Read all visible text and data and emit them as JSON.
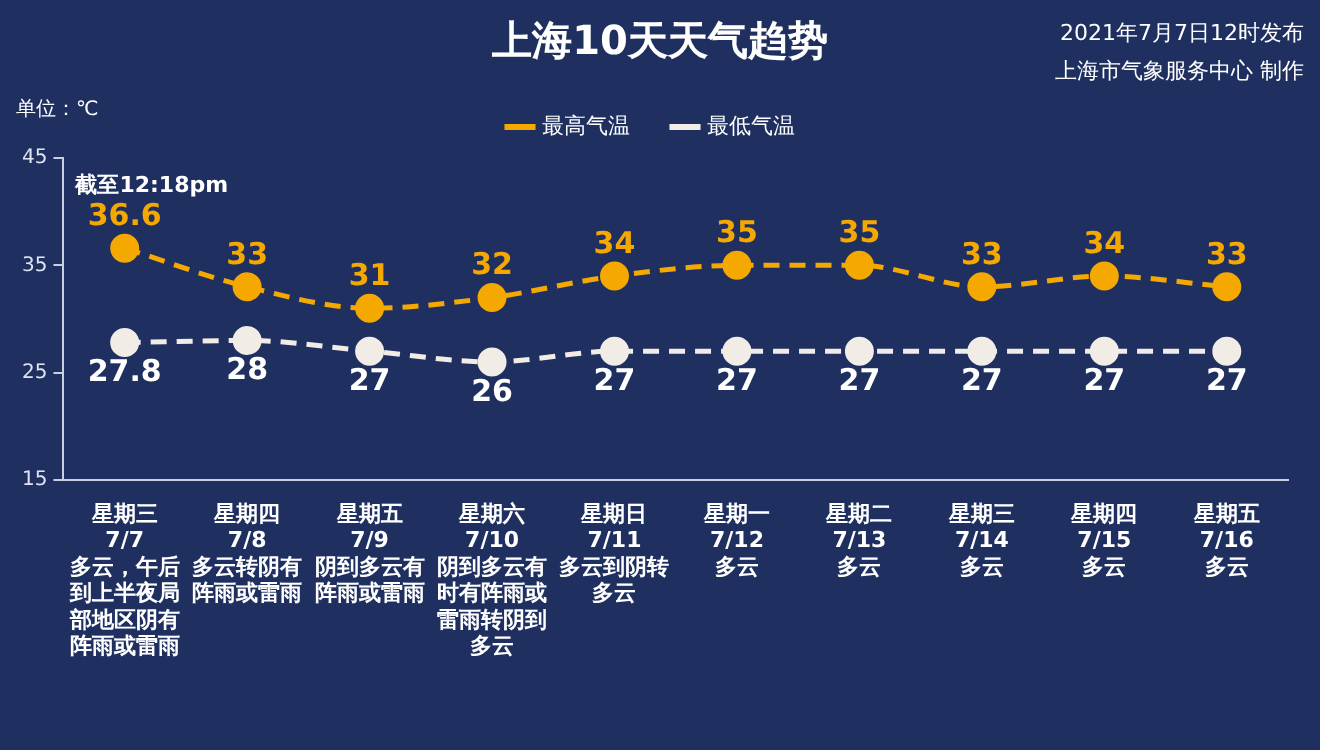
{
  "chart_data": {
    "type": "line",
    "title": "上海10天天气趋势",
    "ylabel": "单位：℃",
    "annotations": [
      "2021年7月7日12时发布",
      "上海市气象服务中心 制作",
      "截至12:18pm"
    ],
    "categories": [
      "星期三\n7/7\n多云，午后到上半夜局部地区阴有阵雨或雷雨",
      "星期四\n7/8\n多云转阴有阵雨或雷雨",
      "星期五\n7/9\n阴到多云有阵雨或雷雨",
      "星期六\n7/10\n阴到多云有时有阵雨或雷雨转阴到多云",
      "星期日\n7/11\n多云到阴转多云",
      "星期一\n7/12\n多云",
      "星期二\n7/13\n多云",
      "星期三\n7/14\n多云",
      "星期四\n7/15\n多云",
      "星期五\n7/16\n多云"
    ],
    "series": [
      {
        "name": "最高气温",
        "color": "#f5a800",
        "values": [
          36.6,
          33,
          31,
          32,
          34,
          35,
          35,
          33,
          34,
          33
        ]
      },
      {
        "name": "最低气温",
        "color": "#f2ece6",
        "values": [
          27.8,
          28,
          27,
          26,
          27,
          27,
          27,
          27,
          27,
          27
        ]
      }
    ],
    "ylim": [
      15,
      45
    ],
    "yticks": [
      15,
      25,
      35,
      45
    ],
    "grid": false,
    "legend": "top right",
    "marker": "circle",
    "line_style": "dashed",
    "data_labels": true
  }
}
